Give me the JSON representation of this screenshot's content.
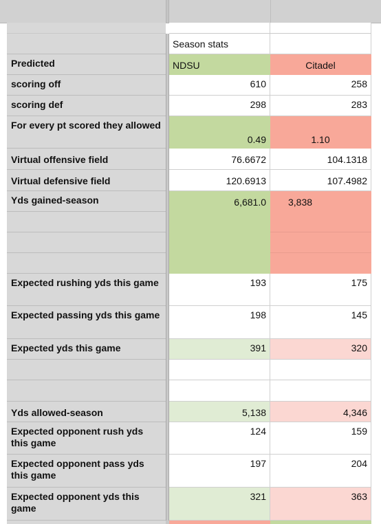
{
  "sheet": {
    "header_row": {
      "col1": "Season stats",
      "col2": ""
    },
    "team_row": {
      "label": "Predicted",
      "team1": "NDSU",
      "team2": "Citadel"
    },
    "rows": [
      {
        "label": "scoring off",
        "v1": "610",
        "v2": "258"
      },
      {
        "label": "scoring def",
        "v1": "298",
        "v2": "283"
      },
      {
        "label": "For every pt scored they allowed",
        "v1": "0.49",
        "v2": "1.10"
      },
      {
        "label": "Virtual offensive field",
        "v1": "76.6672",
        "v2": "104.1318"
      },
      {
        "label": "Virtual defensive field",
        "v1": "120.6913",
        "v2": "107.4982"
      },
      {
        "label": "Yds gained-season",
        "v1": "6,681.0",
        "v2": "3,838"
      },
      {
        "label": "",
        "v1": "",
        "v2": ""
      },
      {
        "label": "",
        "v1": "",
        "v2": ""
      },
      {
        "label": "",
        "v1": "",
        "v2": ""
      },
      {
        "label": "Expected rushing yds this game",
        "v1": "193",
        "v2": "175"
      },
      {
        "label": "Expected passing yds this game",
        "v1": "198",
        "v2": "145"
      },
      {
        "label": "Expected yds this game",
        "v1": "391",
        "v2": "320"
      },
      {
        "label": "",
        "v1": "",
        "v2": ""
      },
      {
        "label": "",
        "v1": "",
        "v2": ""
      },
      {
        "label": "Yds allowed-season",
        "v1": "5,138",
        "v2": "4,346"
      },
      {
        "label": "Expected opponent rush yds this game",
        "v1": "124",
        "v2": "159"
      },
      {
        "label": "Expected opponent pass yds this game",
        "v1": "197",
        "v2": "204"
      },
      {
        "label": "Expected opponent yds this game",
        "v1": "321",
        "v2": "363"
      }
    ]
  },
  "colors": {
    "green_strong": "#c3d99f",
    "red_strong": "#f8a899",
    "green_light": "#e0ecd4",
    "red_light": "#fbd7d2",
    "label_bg": "#d8d8d8"
  }
}
